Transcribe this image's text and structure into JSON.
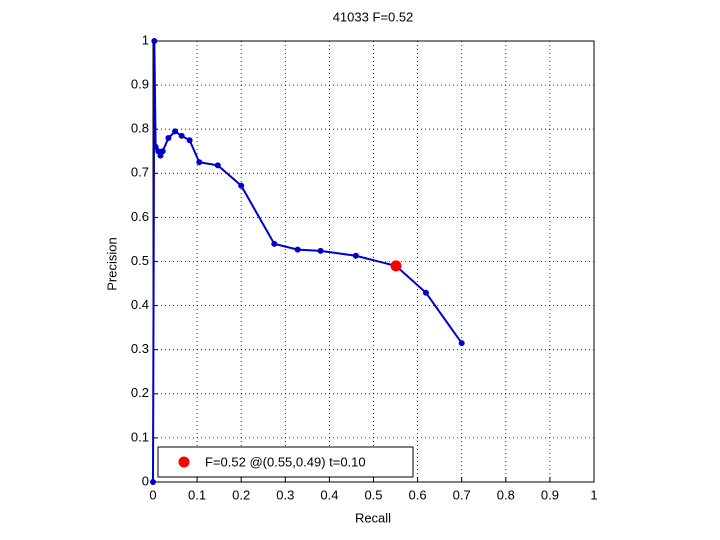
{
  "chart_data": {
    "type": "line",
    "title": "41033 F=0.52",
    "x_label": "Recall",
    "y_label": "Precision",
    "xlim": [
      0,
      1
    ],
    "xticks": [
      0,
      0.1,
      0.2,
      0.3,
      0.4,
      0.5,
      0.6,
      0.7,
      0.8,
      0.9,
      1
    ],
    "ylim": [
      0,
      1
    ],
    "yticks": [
      0,
      0.1,
      0.2,
      0.3,
      0.4,
      0.5,
      0.6,
      0.7,
      0.8,
      0.9,
      1
    ],
    "grid": true,
    "legend_position": "lower left",
    "series": [
      {
        "color": "#0000cc",
        "marker": "dot",
        "x": [
          0,
          0.003,
          0.006,
          0.012,
          0.017,
          0.022,
          0.035,
          0.05,
          0.065,
          0.083,
          0.105,
          0.147,
          0.2,
          0.275,
          0.328,
          0.38,
          0.46,
          0.551,
          0.619,
          0.7
        ],
        "values": [
          0,
          1.0,
          0.76,
          0.75,
          0.74,
          0.75,
          0.78,
          0.795,
          0.785,
          0.775,
          0.725,
          0.718,
          0.672,
          0.54,
          0.527,
          0.524,
          0.513,
          0.49,
          0.429,
          0.315
        ]
      },
      {
        "name": "F=0.52 @(0.55,0.49) t=0.10",
        "color": "#ff0000",
        "marker": "big-dot",
        "x": [
          0.551
        ],
        "values": [
          0.49
        ]
      }
    ]
  }
}
